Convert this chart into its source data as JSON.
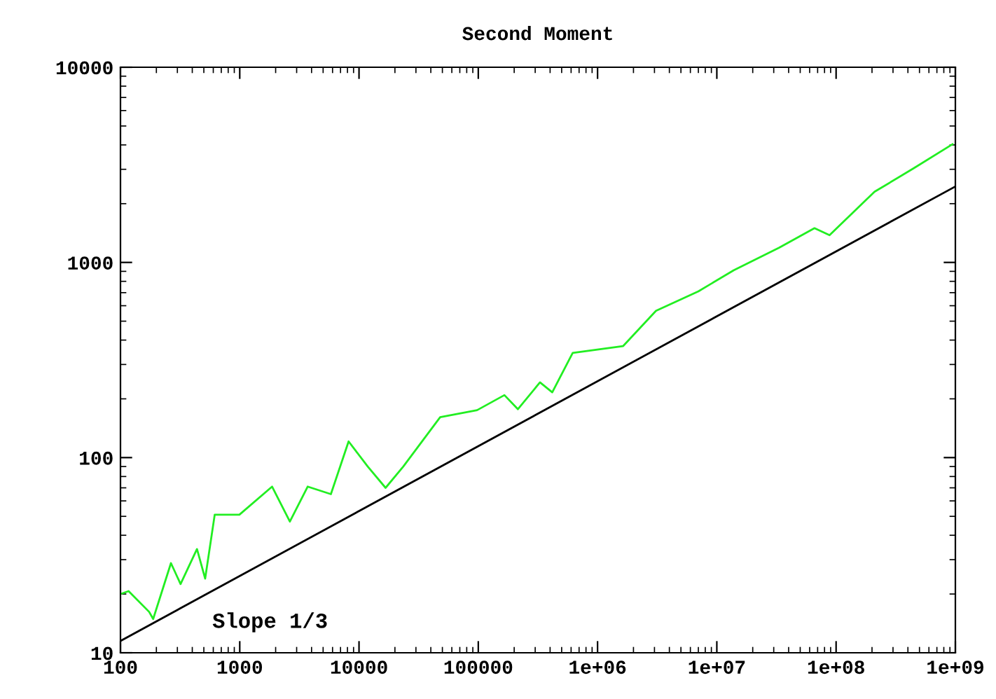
{
  "chart_data": {
    "type": "line",
    "title": "Second Moment",
    "log": "xy",
    "xlim": [
      100,
      1000000000
    ],
    "ylim": [
      10,
      10000
    ],
    "xticks": [
      100,
      1000,
      10000,
      100000,
      {
        "value": 1000000,
        "label": "1e+06"
      },
      {
        "value": 10000000,
        "label": "1e+07"
      },
      {
        "value": 100000000,
        "label": "1e+08"
      },
      {
        "value": 1000000000,
        "label": "1e+09"
      }
    ],
    "yticks": [
      10,
      100,
      1000,
      10000
    ],
    "grid": false,
    "marker": "none",
    "line_style": "solid",
    "annotations": [
      "Slope 1/3"
    ],
    "series": [
      {
        "color": "#22ee22",
        "x": [
          100,
          117,
          174,
          188,
          265,
          319,
          438,
          513,
          617,
          993,
          1868,
          2632,
          3710,
          5810,
          8180,
          11840,
          16700,
          23500,
          47900,
          97700,
          165600,
          215000,
          329000,
          417000,
          619000,
          1640000,
          3090000,
          7000000,
          13900000,
          33200000,
          65900000,
          88100000,
          210000000,
          452000000,
          947000000
        ],
        "values": [
          20,
          20.7,
          16.2,
          14.9,
          28.8,
          22.5,
          34,
          24,
          51,
          51,
          71,
          47,
          71,
          65,
          121,
          90,
          70,
          90,
          161,
          175,
          209,
          177,
          243,
          216,
          344,
          373,
          565,
          711,
          912,
          1188,
          1497,
          1378,
          2301,
          3048,
          4036
        ]
      },
      {
        "color": "#000000",
        "x": [
          100,
          1000000000
        ],
        "values": [
          11.5,
          2450
        ]
      }
    ]
  }
}
